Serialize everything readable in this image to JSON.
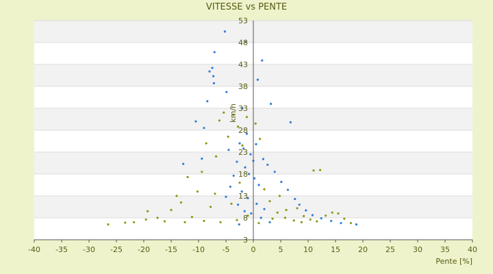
{
  "chart_data": {
    "type": "scatter",
    "title": "VITESSE vs PENTE",
    "xlabel": "Pente [%]",
    "ylabel": "km/h",
    "xlim": [
      -40,
      40
    ],
    "ylim": [
      3,
      53
    ],
    "x_ticks": [
      "-40",
      "-35",
      "-30",
      "-25",
      "-20",
      "-15",
      "-10",
      "-5",
      "0",
      "5",
      "10",
      "15",
      "20",
      "25",
      "30",
      "35",
      "40"
    ],
    "y_ticks": [
      "3",
      "8",
      "13",
      "18",
      "23",
      "28",
      "33",
      "38",
      "43",
      "48",
      "53"
    ],
    "grid": "horizontal bands",
    "series": [
      {
        "color": "#2f7fd6",
        "points": [
          [
            -5.2,
            50.5
          ],
          [
            -1.4,
            48.1
          ],
          [
            -7.1,
            45.8
          ],
          [
            1.6,
            43.9
          ],
          [
            -7.5,
            42.2
          ],
          [
            -8.0,
            41.4
          ],
          [
            -7.3,
            40.3
          ],
          [
            -7.2,
            38.7
          ],
          [
            0.8,
            39.5
          ],
          [
            -4.9,
            36.7
          ],
          [
            -8.4,
            34.6
          ],
          [
            3.2,
            34.0
          ],
          [
            -10.5,
            30.0
          ],
          [
            -9.0,
            28.5
          ],
          [
            -2.0,
            33.0
          ],
          [
            6.8,
            29.8
          ],
          [
            -12.8,
            20.3
          ],
          [
            -9.4,
            21.5
          ],
          [
            -4.5,
            23.5
          ],
          [
            -2.5,
            25.0
          ],
          [
            -1.2,
            27.2
          ],
          [
            0.5,
            24.8
          ],
          [
            1.8,
            21.4
          ],
          [
            2.6,
            20.1
          ],
          [
            3.9,
            18.5
          ],
          [
            5.1,
            16.2
          ],
          [
            6.3,
            14.4
          ],
          [
            7.6,
            12.3
          ],
          [
            8.4,
            11.0
          ],
          [
            9.6,
            9.7
          ],
          [
            10.8,
            8.6
          ],
          [
            12.4,
            7.9
          ],
          [
            14.2,
            7.3
          ],
          [
            16.0,
            6.8
          ],
          [
            18.8,
            6.5
          ],
          [
            -1.5,
            19.5
          ],
          [
            -0.8,
            18.0
          ],
          [
            0.2,
            17.0
          ],
          [
            1.0,
            15.5
          ],
          [
            -2.1,
            14.0
          ],
          [
            -1.0,
            12.5
          ],
          [
            0.6,
            11.2
          ],
          [
            2.0,
            10.0
          ],
          [
            -0.4,
            9.0
          ],
          [
            1.4,
            8.0
          ],
          [
            3.0,
            7.0
          ],
          [
            -2.6,
            6.5
          ],
          [
            0.0,
            21.0
          ],
          [
            -0.5,
            22.5
          ],
          [
            -1.8,
            23.8
          ],
          [
            -3.0,
            20.8
          ],
          [
            -3.6,
            17.6
          ],
          [
            -4.2,
            15.1
          ],
          [
            -5.0,
            12.8
          ],
          [
            -2.8,
            11.0
          ],
          [
            -1.6,
            9.5
          ]
        ]
      },
      {
        "color": "#8a9a14",
        "points": [
          [
            -26.5,
            6.5
          ],
          [
            -23.4,
            6.9
          ],
          [
            -21.8,
            7.0
          ],
          [
            -19.6,
            7.6
          ],
          [
            -19.3,
            9.5
          ],
          [
            -17.5,
            8.0
          ],
          [
            -16.2,
            7.2
          ],
          [
            -14.0,
            13.0
          ],
          [
            -13.2,
            11.5
          ],
          [
            -12.0,
            17.3
          ],
          [
            -11.2,
            8.2
          ],
          [
            -10.2,
            14.0
          ],
          [
            -9.4,
            18.5
          ],
          [
            -8.6,
            25.0
          ],
          [
            -7.8,
            10.5
          ],
          [
            -6.8,
            22.0
          ],
          [
            -6.2,
            30.2
          ],
          [
            -5.4,
            32.0
          ],
          [
            -4.6,
            26.5
          ],
          [
            -3.6,
            31.5
          ],
          [
            -2.8,
            28.8
          ],
          [
            -2.0,
            24.5
          ],
          [
            -1.2,
            31.0
          ],
          [
            0.4,
            29.5
          ],
          [
            1.2,
            26.0
          ],
          [
            2.0,
            14.5
          ],
          [
            3.0,
            11.8
          ],
          [
            4.4,
            9.2
          ],
          [
            5.8,
            8.0
          ],
          [
            7.4,
            7.4
          ],
          [
            8.8,
            7.0
          ],
          [
            10.4,
            7.6
          ],
          [
            11.6,
            7.2
          ],
          [
            12.2,
            18.9
          ],
          [
            11.0,
            18.8
          ],
          [
            13.2,
            8.5
          ],
          [
            14.4,
            9.2
          ],
          [
            15.5,
            9.0
          ],
          [
            16.6,
            7.8
          ],
          [
            17.8,
            6.8
          ],
          [
            -9.0,
            7.3
          ],
          [
            -6.0,
            7.0
          ],
          [
            -3.0,
            7.5
          ],
          [
            -1.0,
            8.5
          ],
          [
            1.0,
            6.8
          ],
          [
            3.5,
            7.8
          ],
          [
            6.0,
            9.8
          ],
          [
            -15.0,
            9.8
          ],
          [
            -12.5,
            7.0
          ],
          [
            -7.0,
            13.5
          ],
          [
            -4.0,
            11.2
          ],
          [
            -2.5,
            16.0
          ],
          [
            4.8,
            13.0
          ],
          [
            8.0,
            10.2
          ],
          [
            9.2,
            8.4
          ]
        ]
      }
    ]
  }
}
